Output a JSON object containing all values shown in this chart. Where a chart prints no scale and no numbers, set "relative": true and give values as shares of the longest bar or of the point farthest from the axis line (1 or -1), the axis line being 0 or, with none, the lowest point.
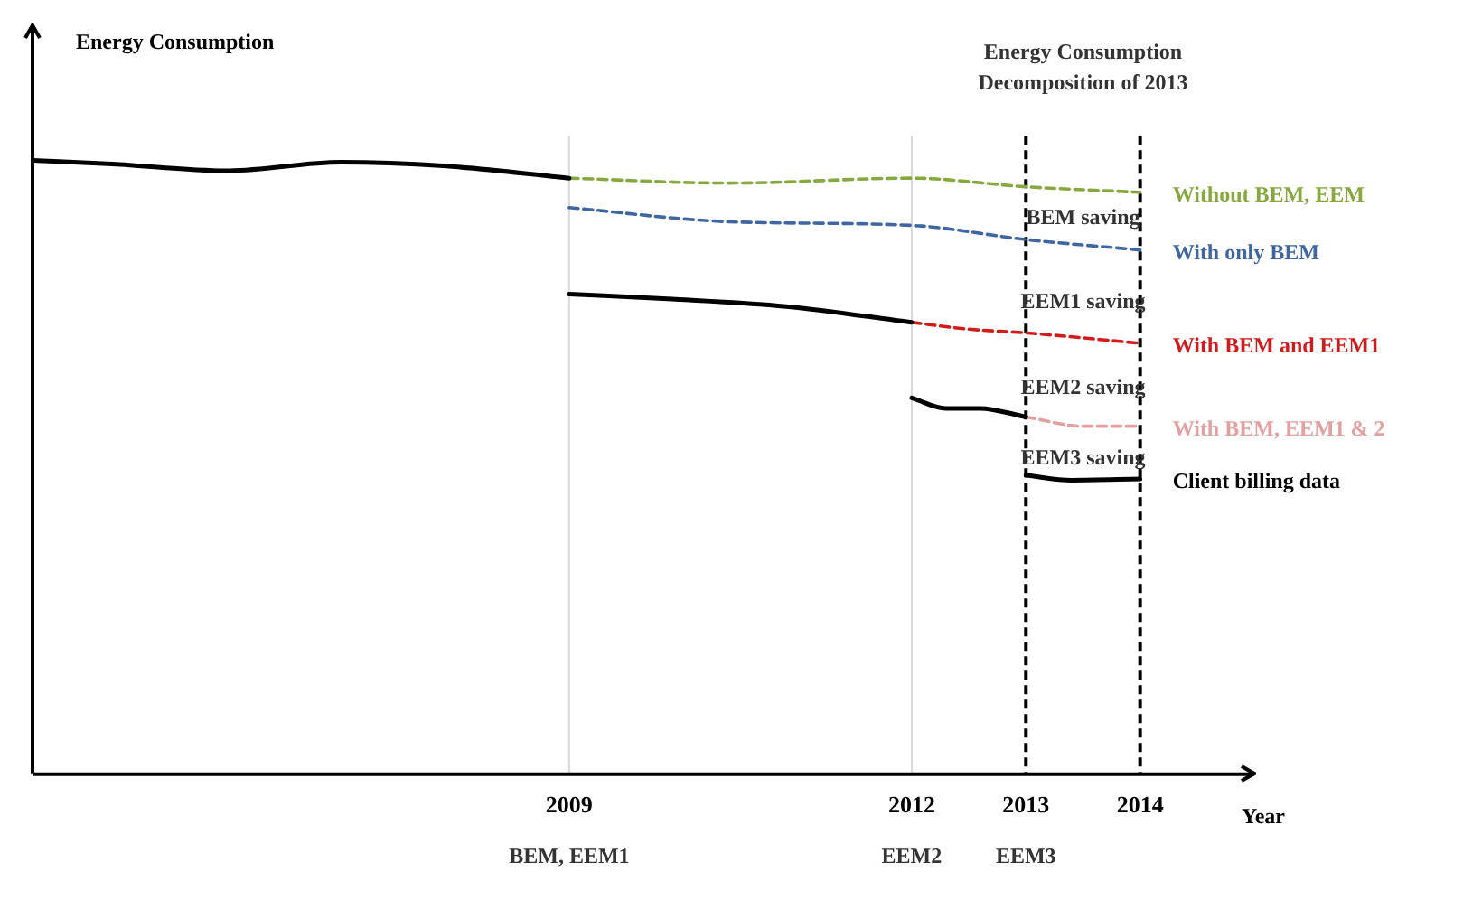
{
  "chart_data": {
    "type": "line",
    "relative": true,
    "ylabel": "Energy Consumption",
    "xlabel": "Year",
    "xlim": [
      2004.3,
      2015.0
    ],
    "xticks": [
      2009,
      2012,
      2013,
      2014
    ],
    "grid": false,
    "legend": false,
    "marker": "none",
    "series": [
      {
        "color": "#000000",
        "line_style": "solid",
        "x": [
          2004.3,
          2005.0,
          2006.0,
          2007.0,
          2007.9,
          2009
        ],
        "values": [
          1.0,
          0.994,
          0.983,
          0.997,
          0.991,
          0.971
        ]
      },
      {
        "color": "#000000",
        "line_style": "solid",
        "x": [
          2009,
          2009.9,
          2010.9,
          2012
        ],
        "values": [
          0.782,
          0.774,
          0.762,
          0.736
        ]
      },
      {
        "color": "#000000",
        "line_style": "solid",
        "x": [
          2012,
          2012.3,
          2012.6,
          2013
        ],
        "values": [
          0.613,
          0.596,
          0.596,
          0.582
        ]
      },
      {
        "name": "Without BEM, EEM",
        "color": "#86a83f",
        "line_style": "dashed",
        "x": [
          2009,
          2010.4,
          2012,
          2013,
          2014
        ],
        "values": [
          0.971,
          0.963,
          0.971,
          0.957,
          0.948
        ]
      },
      {
        "name": "With only BEM",
        "color": "#3f66a0",
        "line_style": "dashed",
        "x": [
          2009,
          2010.4,
          2012,
          2013,
          2014
        ],
        "values": [
          0.923,
          0.9,
          0.894,
          0.871,
          0.854
        ]
      },
      {
        "name": "With BEM and EEM1",
        "color": "#d01c1c",
        "line_style": "dashed",
        "x": [
          2012,
          2012.5,
          2013,
          2014
        ],
        "values": [
          0.736,
          0.725,
          0.719,
          0.702
        ]
      },
      {
        "name": "With BEM, EEM1 & 2",
        "color": "#e3a0a0",
        "line_style": "dashed",
        "x": [
          2013,
          2013.5,
          2014
        ],
        "values": [
          0.582,
          0.567,
          0.567
        ]
      },
      {
        "name": "Client billing data",
        "color": "#000000",
        "line_style": "solid",
        "x": [
          2013,
          2013.4,
          2014
        ],
        "values": [
          0.487,
          0.479,
          0.481
        ]
      }
    ],
    "ref_lines": [
      {
        "axis": "x",
        "value": 2009,
        "color": "#d9d9d9",
        "line_style": "solid"
      },
      {
        "axis": "x",
        "value": 2012,
        "color": "#d9d9d9",
        "line_style": "solid"
      },
      {
        "axis": "x",
        "value": 2013,
        "color": "#000000",
        "line_style": "dashed"
      },
      {
        "axis": "x",
        "value": 2014,
        "color": "#000000",
        "line_style": "dashed"
      }
    ],
    "annotations": [
      "Energy Consumption\nDecomposition of 2013",
      "BEM saving",
      "EEM1 saving",
      "EEM2 saving",
      "EEM3 saving",
      "BEM, EEM1",
      "EEM2",
      "EEM3"
    ]
  }
}
